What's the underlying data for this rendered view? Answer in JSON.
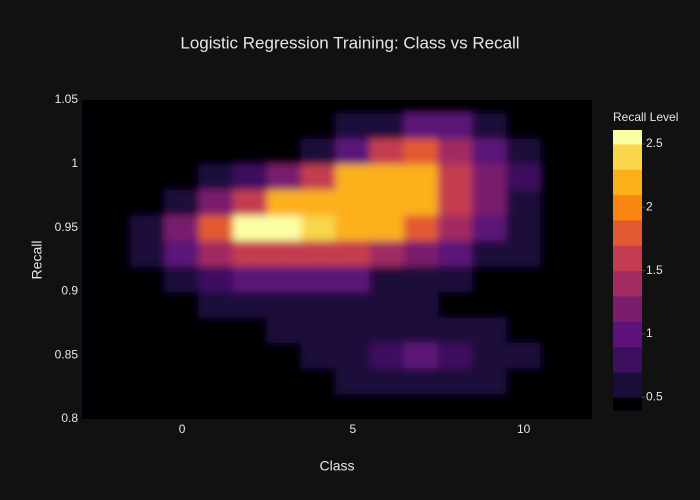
{
  "chart_data": {
    "type": "contour",
    "title": "Logistic Regression Training: Class vs Recall",
    "x_label": "Class",
    "y_label": "Recall",
    "colorbar_title": "Recall Level",
    "x": [
      -2,
      -1,
      0,
      1,
      2,
      3,
      4,
      5,
      6,
      7,
      8,
      9,
      10,
      11,
      12
    ],
    "y": [
      0.81,
      0.83,
      0.85,
      0.87,
      0.89,
      0.91,
      0.93,
      0.95,
      0.97,
      0.99,
      1.01,
      1.03,
      1.05
    ],
    "z": [
      [
        0,
        0,
        0,
        0,
        0,
        0,
        0.2,
        0.3,
        0.3,
        0.3,
        0.3,
        0.2,
        0,
        0,
        0
      ],
      [
        0,
        0,
        0,
        0,
        0,
        0.3,
        0.4,
        0.5,
        0.6,
        0.6,
        0.6,
        0.5,
        0.3,
        0,
        0
      ],
      [
        0,
        0,
        0,
        0,
        0.3,
        0.4,
        0.5,
        0.6,
        0.8,
        1.0,
        0.8,
        0.6,
        0.5,
        0,
        0
      ],
      [
        0,
        0,
        0,
        0.3,
        0.4,
        0.5,
        0.5,
        0.5,
        0.6,
        0.7,
        0.6,
        0.5,
        0.3,
        0,
        0
      ],
      [
        0,
        0,
        0.3,
        0.5,
        0.7,
        0.7,
        0.6,
        0.5,
        0.5,
        0.5,
        0.4,
        0.3,
        0,
        0,
        0
      ],
      [
        0,
        0.2,
        0.5,
        0.8,
        1.0,
        1.0,
        1.0,
        0.9,
        0.7,
        0.6,
        0.5,
        0.4,
        0.3,
        0,
        0
      ],
      [
        0,
        0.5,
        0.9,
        1.3,
        1.7,
        1.7,
        1.6,
        1.5,
        1.4,
        1.2,
        0.9,
        0.7,
        0.5,
        0.2,
        0
      ],
      [
        0,
        0.6,
        1.1,
        1.8,
        2.6,
        2.6,
        2.4,
        2.2,
        2.1,
        1.8,
        1.4,
        1.0,
        0.6,
        0.3,
        0
      ],
      [
        0,
        0.3,
        0.7,
        1.2,
        1.7,
        2.1,
        2.1,
        2.1,
        2.1,
        2.1,
        1.7,
        1.2,
        0.7,
        0.4,
        0
      ],
      [
        0,
        0,
        0.3,
        0.5,
        0.8,
        1.1,
        1.6,
        2.1,
        2.1,
        2.1,
        1.7,
        1.2,
        0.8,
        0.4,
        0
      ],
      [
        0,
        0,
        0,
        0,
        0,
        0.4,
        0.6,
        0.9,
        1.6,
        1.9,
        1.4,
        1.0,
        0.6,
        0.3,
        0
      ],
      [
        0,
        0,
        0,
        0,
        0,
        0,
        0.3,
        0.5,
        0.7,
        0.9,
        0.9,
        0.7,
        0.4,
        0,
        0
      ],
      [
        0,
        0,
        0,
        0,
        0,
        0,
        0,
        0,
        0,
        0.3,
        0.3,
        0.3,
        0,
        0,
        0
      ]
    ],
    "contours": {
      "start": 0.5,
      "end": 2.5,
      "size": 0.2
    },
    "colorscale": [
      "#000004",
      "#1a0d3a",
      "#3d0f5e",
      "#5c1278",
      "#7a1d6d",
      "#a12b62",
      "#c43c4f",
      "#e35a32",
      "#f98513",
      "#fbb01a",
      "#f9d64a",
      "#fcfea4"
    ],
    "xlim": [
      -2.93,
      12
    ],
    "ylim": [
      0.8,
      1.05
    ],
    "xticks": [
      0,
      5,
      10
    ],
    "yticks": [
      0.8,
      0.85,
      0.9,
      0.95,
      1,
      1.05
    ],
    "colorbar_lim": [
      0.4,
      2.61
    ],
    "colorbar_ticks": [
      0.5,
      1,
      1.5,
      2,
      2.5
    ]
  }
}
